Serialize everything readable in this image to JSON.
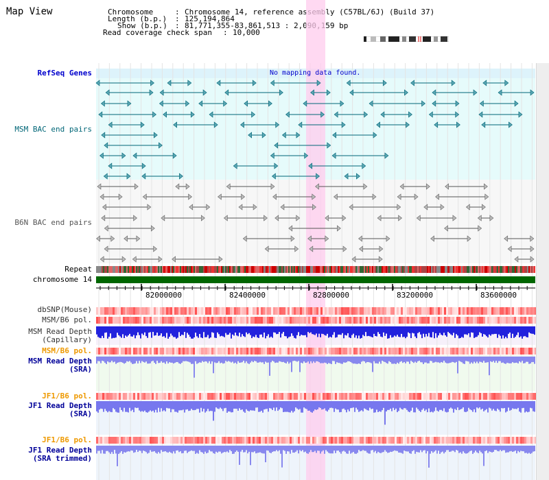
{
  "window": {
    "title": "Map View"
  },
  "info": {
    "chromosome_label": "Chromosome",
    "chromosome_value": "Chromosome 14, reference assembly (C57BL/6J) (Build 37)",
    "length_label": "Length (b.p.)",
    "length_value": "125,194,864",
    "show_label": "Show (b.p.)",
    "show_value": "81,771,355-83,861,513 : 2,090,159 bp",
    "coverage_label": "Read coverage check span",
    "coverage_value": "10,000"
  },
  "tracks": {
    "refseq_label": "RefSeq Genes",
    "refseq_message": "No mapping data found.",
    "msm_bac_label": "MSM BAC end pairs",
    "b6n_bac_label": "B6N BAC end pairs",
    "repeat_label": "Repeat",
    "chrom_label": "chromosome 14",
    "dbsnp_label": "dbSNP(Mouse)",
    "msm_b6_pol_label": "MSM/B6 pol.",
    "msm_depth_cap_label": "MSM Read Depth",
    "msm_depth_cap_sub": "(Capillary)",
    "msm_b6_pol2_label": "MSM/B6 pol.",
    "msm_depth_sra_label": "MSM Read Depth",
    "msm_depth_sra_sub": "(SRA)",
    "jf1_pol_label": "JF1/B6 pol.",
    "jf1_depth_sra_label": "JF1 Read Depth",
    "jf1_depth_sra_sub": "(SRA)",
    "jf1_pol2_label": "JF1/B6 pol.",
    "jf1_depth_trim_label": "JF1 Read Depth",
    "jf1_depth_trim_sub": "(SRA trimmed)"
  },
  "ruler": {
    "ticks": [
      "82000000",
      "82400000",
      "82800000",
      "83200000",
      "83600000"
    ]
  },
  "colors": {
    "refseq_label": "#0000cc",
    "msm_bac": "#006677",
    "b6n_bac": "#555555",
    "orange_label": "#ee9900",
    "navy_label": "#000099",
    "highlight": "#ffccee",
    "chrom_bar": "#006600"
  }
}
